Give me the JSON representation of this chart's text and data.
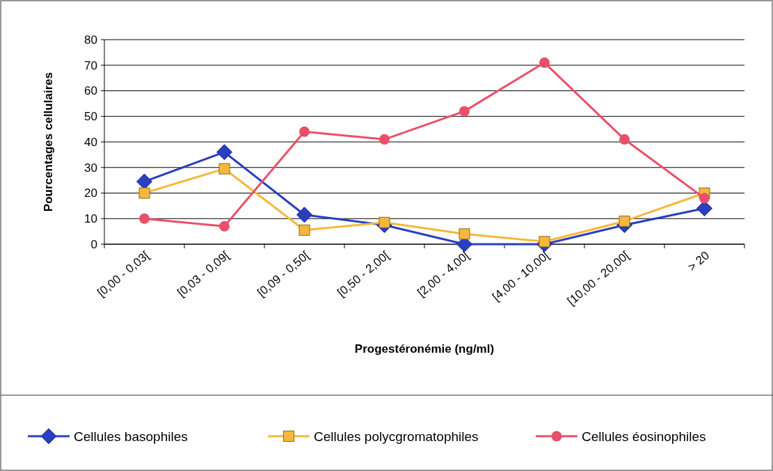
{
  "chart_data": {
    "type": "line",
    "xlabel": "Progestéronémie (ng/ml)",
    "ylabel": "Pourcentages cellulaires",
    "categories": [
      "[0,00 - 0,03[",
      "[0,03 - 0,09[",
      "[0,09 - 0,50[",
      "[0,50 - 2,00[",
      "[2,00 - 4,00[",
      "[4,00 - 10,00[",
      "[10,00 - 20,00[",
      "> 20"
    ],
    "series": [
      {
        "name": "Cellules basophiles",
        "color": "#2a3ec0",
        "marker": "diamond",
        "values": [
          24.5,
          36,
          11.5,
          7.5,
          0,
          0,
          7.5,
          14
        ]
      },
      {
        "name": "Cellules polycgromatophiles",
        "color": "#f5b83a",
        "marker": "square",
        "values": [
          20,
          29.5,
          5.5,
          8.5,
          4,
          1,
          9,
          20
        ]
      },
      {
        "name": "Cellules éosinophiles",
        "color": "#e8506a",
        "marker": "circle",
        "values": [
          10,
          7,
          44,
          41,
          52,
          71,
          41,
          18
        ]
      }
    ],
    "ylim": [
      0,
      80
    ],
    "yticks": [
      0,
      10,
      20,
      30,
      40,
      50,
      60,
      70,
      80
    ],
    "grid": "y",
    "legend": "bottom"
  }
}
